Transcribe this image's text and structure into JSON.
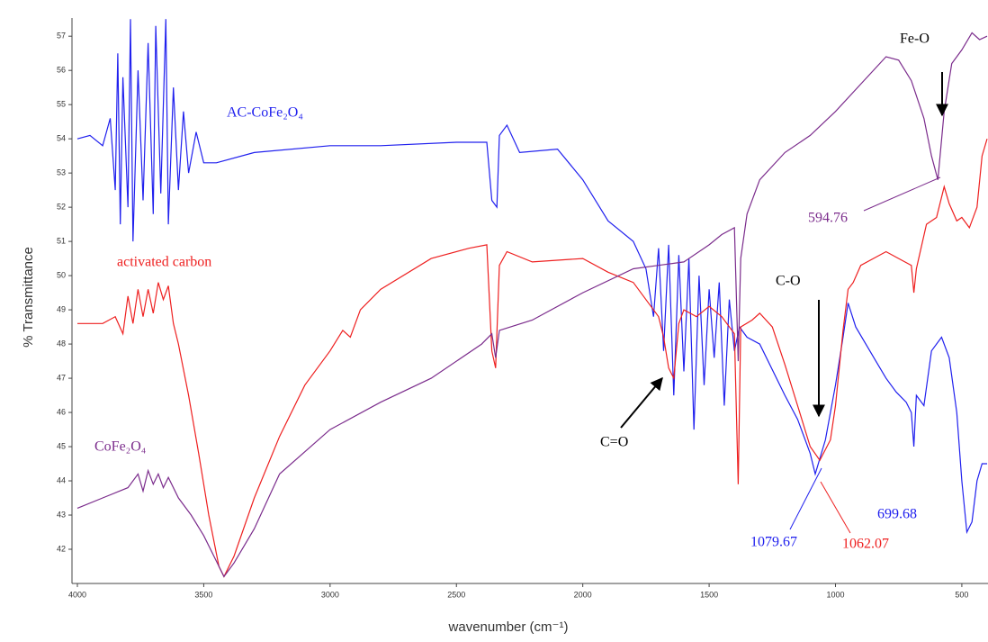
{
  "chart_data": {
    "type": "line",
    "x_label": "wavenumber (cm⁻¹)",
    "y_label": "% Transmittance",
    "xlim": [
      4000,
      400
    ],
    "ylim": [
      41,
      57.4
    ],
    "xticks": [
      4000,
      3500,
      3000,
      2500,
      2000,
      1500,
      1000,
      500
    ],
    "yticks": [
      42,
      43,
      44,
      45,
      46,
      47,
      48,
      49,
      50,
      51,
      52,
      53,
      54,
      55,
      56,
      57
    ],
    "series": [
      {
        "name": "AC-CoFe₂O₄",
        "color": "#2020ee",
        "x": [
          4000,
          3950,
          3900,
          3870,
          3850,
          3840,
          3830,
          3820,
          3800,
          3790,
          3780,
          3760,
          3740,
          3720,
          3700,
          3690,
          3670,
          3650,
          3640,
          3620,
          3600,
          3580,
          3560,
          3530,
          3500,
          3450,
          3300,
          3000,
          2800,
          2500,
          2380,
          2360,
          2340,
          2330,
          2300,
          2250,
          2100,
          2000,
          1900,
          1800,
          1750,
          1720,
          1700,
          1680,
          1660,
          1640,
          1620,
          1600,
          1580,
          1560,
          1540,
          1520,
          1500,
          1480,
          1460,
          1440,
          1420,
          1400,
          1380,
          1350,
          1300,
          1200,
          1150,
          1100,
          1080,
          1040,
          1000,
          970,
          950,
          920,
          880,
          840,
          800,
          760,
          720,
          700,
          690,
          680,
          650,
          620,
          580,
          550,
          520,
          500,
          480,
          460,
          440,
          420,
          400
        ],
        "values": [
          54.0,
          54.1,
          53.8,
          54.6,
          52.5,
          56.5,
          51.5,
          55.8,
          52.0,
          57.5,
          51.0,
          56.0,
          52.2,
          56.8,
          51.8,
          57.3,
          52.4,
          57.5,
          51.5,
          55.5,
          52.5,
          54.8,
          53.0,
          54.2,
          53.3,
          53.3,
          53.6,
          53.8,
          53.8,
          53.9,
          53.9,
          52.2,
          52.0,
          54.1,
          54.4,
          53.6,
          53.7,
          52.8,
          51.6,
          51.0,
          50.2,
          48.8,
          50.8,
          47.8,
          50.9,
          46.5,
          50.6,
          47.2,
          50.5,
          45.5,
          50.0,
          46.8,
          49.6,
          47.6,
          49.8,
          46.2,
          49.3,
          47.8,
          48.5,
          48.2,
          48.0,
          46.5,
          45.8,
          44.8,
          44.2,
          45.2,
          46.8,
          48.2,
          49.2,
          48.5,
          48.0,
          47.5,
          47.0,
          46.6,
          46.3,
          46.0,
          45.0,
          46.5,
          46.2,
          47.8,
          48.2,
          47.6,
          46.0,
          44.0,
          42.5,
          42.8,
          44.0,
          44.5,
          44.5
        ]
      },
      {
        "name": "activated carbon",
        "color": "#ee2020",
        "x": [
          4000,
          3900,
          3850,
          3820,
          3800,
          3780,
          3760,
          3740,
          3720,
          3700,
          3680,
          3660,
          3640,
          3620,
          3600,
          3560,
          3520,
          3480,
          3440,
          3420,
          3380,
          3300,
          3200,
          3100,
          3000,
          2950,
          2920,
          2880,
          2800,
          2600,
          2450,
          2380,
          2360,
          2345,
          2330,
          2300,
          2200,
          2000,
          1900,
          1800,
          1700,
          1680,
          1660,
          1640,
          1620,
          1600,
          1550,
          1500,
          1450,
          1400,
          1385,
          1375,
          1330,
          1300,
          1250,
          1200,
          1150,
          1100,
          1062,
          1020,
          1000,
          970,
          950,
          930,
          900,
          850,
          800,
          750,
          700,
          690,
          680,
          640,
          600,
          570,
          550,
          520,
          500,
          470,
          440,
          420,
          400
        ],
        "values": [
          48.6,
          48.6,
          48.8,
          48.3,
          49.4,
          48.6,
          49.6,
          48.8,
          49.6,
          48.9,
          49.8,
          49.3,
          49.7,
          48.6,
          48.0,
          46.5,
          44.8,
          43.0,
          41.5,
          41.2,
          41.8,
          43.5,
          45.3,
          46.8,
          47.8,
          48.4,
          48.2,
          49.0,
          49.6,
          50.5,
          50.8,
          50.9,
          47.8,
          47.3,
          50.3,
          50.7,
          50.4,
          50.5,
          50.1,
          49.8,
          48.8,
          48.2,
          47.3,
          47.0,
          48.6,
          49.0,
          48.8,
          49.1,
          48.8,
          48.3,
          43.9,
          48.5,
          48.7,
          48.9,
          48.5,
          47.4,
          46.2,
          45.0,
          44.6,
          45.2,
          46.2,
          48.4,
          49.6,
          49.8,
          50.3,
          50.5,
          50.7,
          50.5,
          50.3,
          49.5,
          50.2,
          51.5,
          51.7,
          52.6,
          52.1,
          51.6,
          51.7,
          51.4,
          52.0,
          53.5,
          54.0
        ]
      },
      {
        "name": "CoFe₂O₄",
        "color": "#7b2c8c",
        "x": [
          4000,
          3900,
          3800,
          3760,
          3740,
          3720,
          3700,
          3680,
          3660,
          3640,
          3600,
          3550,
          3500,
          3460,
          3420,
          3380,
          3300,
          3200,
          3000,
          2800,
          2600,
          2400,
          2360,
          2345,
          2330,
          2200,
          2000,
          1800,
          1700,
          1600,
          1500,
          1450,
          1400,
          1385,
          1375,
          1350,
          1300,
          1200,
          1100,
          1000,
          900,
          800,
          750,
          700,
          650,
          620,
          594.76,
          570,
          540,
          500,
          460,
          430,
          400
        ],
        "values": [
          43.2,
          43.5,
          43.8,
          44.2,
          43.7,
          44.3,
          43.9,
          44.2,
          43.8,
          44.1,
          43.5,
          43.0,
          42.4,
          41.8,
          41.2,
          41.6,
          42.6,
          44.2,
          45.5,
          46.3,
          47.0,
          48.0,
          48.3,
          47.6,
          48.4,
          48.7,
          49.5,
          50.2,
          50.3,
          50.4,
          50.9,
          51.2,
          51.4,
          47.5,
          50.5,
          51.8,
          52.8,
          53.6,
          54.1,
          54.8,
          55.6,
          56.4,
          56.3,
          55.7,
          54.6,
          53.5,
          52.8,
          54.8,
          56.2,
          56.6,
          57.1,
          56.9,
          57.0
        ]
      }
    ],
    "annotations": [
      "Fe-O",
      "C-O",
      "C=O",
      "594.76",
      "1079.67",
      "1062.07",
      "699.68"
    ]
  }
}
